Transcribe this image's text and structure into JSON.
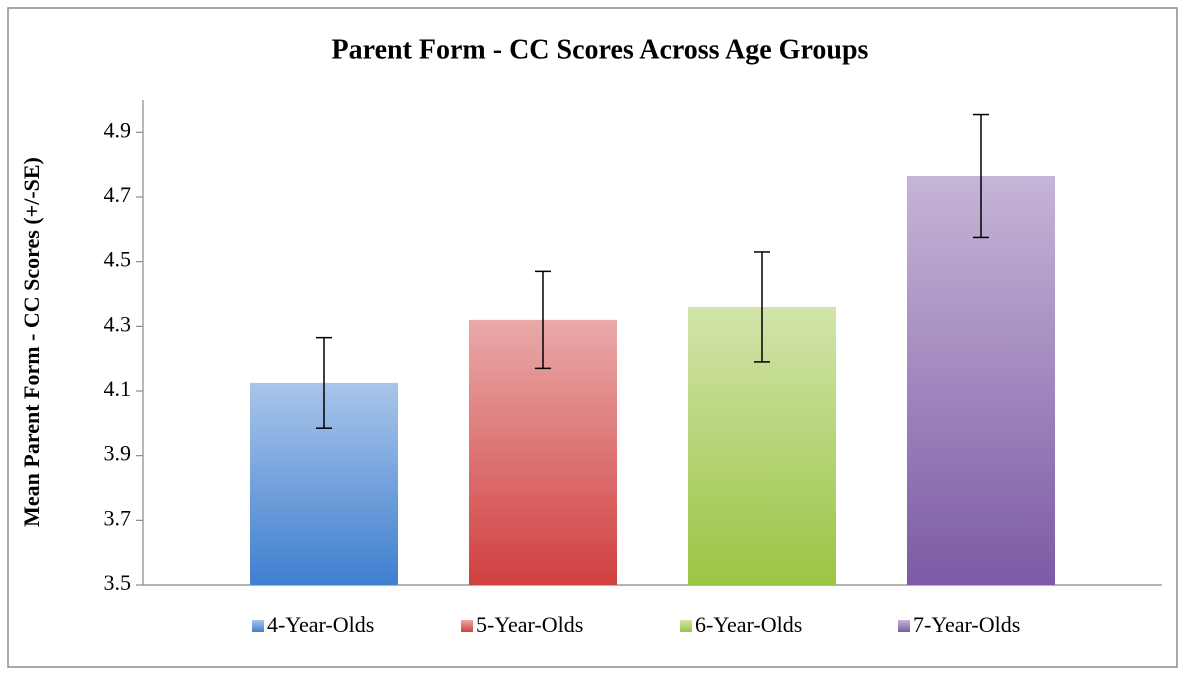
{
  "chart_data": {
    "type": "bar",
    "title": "Parent Form - CC Scores Across Age Groups",
    "y_label": "Mean Parent Form - CC Scores (+/-SE)",
    "categories": [
      null
    ],
    "series": [
      {
        "name": "4-Year-Olds",
        "color": "#3f7fcf",
        "values": [
          4.125
        ],
        "errors": [
          0.14
        ]
      },
      {
        "name": "5-Year-Olds",
        "color": "#d04040",
        "values": [
          4.32
        ],
        "errors": [
          0.15
        ]
      },
      {
        "name": "6-Year-Olds",
        "color": "#9bc443",
        "values": [
          4.36
        ],
        "errors": [
          0.17
        ]
      },
      {
        "name": "7-Year-Olds",
        "color": "#7d5aa5",
        "values": [
          4.765
        ],
        "errors": [
          0.19
        ]
      }
    ],
    "ylim": [
      3.5,
      5.0
    ],
    "yticks": [
      3.5,
      3.7,
      3.9,
      4.1,
      4.3,
      4.5,
      4.7,
      4.9
    ],
    "legend": "bottom"
  }
}
